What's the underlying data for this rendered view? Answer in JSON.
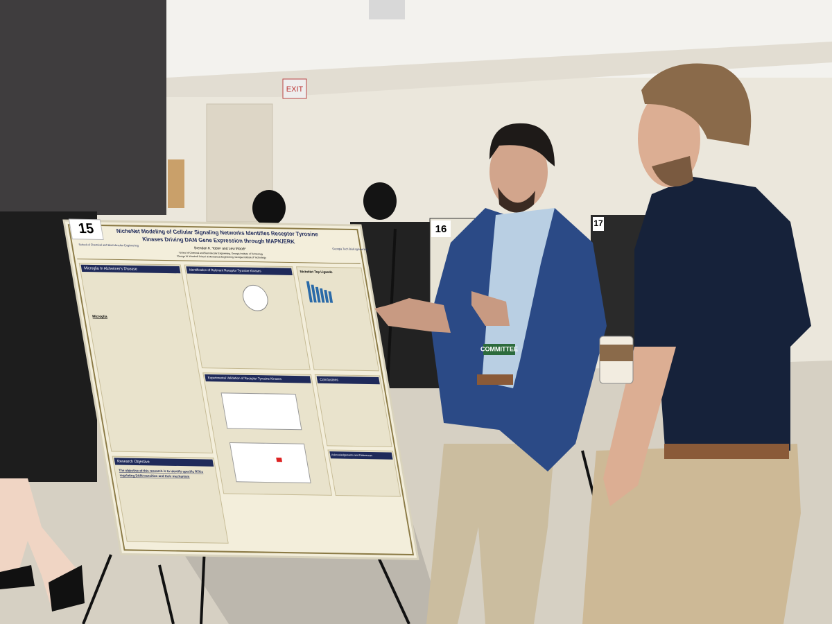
{
  "signs": {
    "board_15": "15",
    "board_16": "16",
    "board_17": "17",
    "exit": "EXIT"
  },
  "poster": {
    "logo_left": "School of Chemical and Biomolecular Engineering",
    "logo_right": "Georgia Tech BioEngineering",
    "title_lines": [
      "NicheNet Modeling of Cellular Signaling Networks Identifies Receptor Tyrosine",
      "Kinases Driving DAM Gene Expression through MAPK/ERK"
    ],
    "authors": "Brendan K. Tobin¹ and Levi Wood²",
    "affiliations": [
      "¹School of Chemical and Biomolecular Engineering, Georgia Institute of Technology",
      "²George W. Woodruff School of Mechanical Engineering, Georgia Institute of Technology"
    ],
    "sections": [
      "Microglia In Alzheimer's Disease",
      "Identification of Relevant Receptor Tyrosine Kinases",
      "NicheNet Top Ligands",
      "Experimental Validation of Receptor Tyrosine Kinases",
      "Conclusions",
      "Acknowledgements and References",
      "Research Objective"
    ],
    "subheading": "Microglia",
    "objective_lines": [
      "The objective of this research is to identify specific RTKs",
      "regulating DAM transition and their mechanism"
    ]
  },
  "badge": "COMMITTEE"
}
